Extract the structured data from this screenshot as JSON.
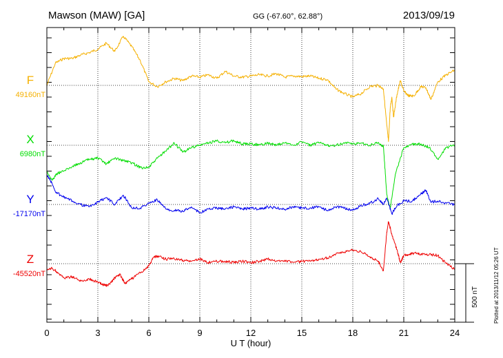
{
  "chart_data": {
    "type": "line",
    "title": "Mawson (MAW)  [GA]",
    "coords": "GG (-67.60°,  62.88°)",
    "date": "2013/09/19",
    "xlabel": "U T (hour)",
    "xlim": [
      0,
      24
    ],
    "x_ticks": [
      0,
      3,
      6,
      9,
      12,
      15,
      18,
      21,
      24
    ],
    "grid": true,
    "scale_bar": "500 nT",
    "footer": "Plotted at 2013/11/12 05:26 UT",
    "series": [
      {
        "name": "F",
        "baseline_label": "49160nT",
        "color": "#f5b000",
        "baseline_nT": 49160,
        "x": [
          0,
          0.5,
          1,
          1.5,
          2,
          2.5,
          3,
          3.5,
          4,
          4.5,
          5,
          5.5,
          6,
          6.5,
          7,
          7.5,
          8,
          8.5,
          9,
          9.5,
          10,
          10.5,
          11,
          11.5,
          12,
          12.5,
          13,
          13.5,
          14,
          14.5,
          15,
          15.5,
          16,
          16.5,
          17,
          17.5,
          18,
          18.5,
          19,
          19.5,
          19.8,
          20,
          20.1,
          20.2,
          20.3,
          20.4,
          20.6,
          20.8,
          21,
          21.3,
          21.6,
          22,
          22.3,
          22.6,
          23,
          23.5,
          24
        ],
        "y": [
          49160,
          49350,
          49390,
          49390,
          49420,
          49440,
          49470,
          49520,
          49450,
          49580,
          49490,
          49370,
          49190,
          49150,
          49190,
          49220,
          49200,
          49240,
          49230,
          49250,
          49220,
          49280,
          49240,
          49230,
          49240,
          49250,
          49240,
          49260,
          49230,
          49240,
          49235,
          49240,
          49220,
          49210,
          49130,
          49090,
          49060,
          49090,
          49150,
          49160,
          49130,
          48820,
          48680,
          48960,
          49060,
          48890,
          49080,
          49200,
          49110,
          49070,
          49070,
          49150,
          49140,
          49040,
          49190,
          49250,
          49290
        ]
      },
      {
        "name": "X",
        "baseline_label": "6980nT",
        "color": "#00dd00",
        "baseline_nT": 6980,
        "x": [
          0,
          0.3,
          0.6,
          1,
          1.5,
          2,
          2.5,
          3,
          3.5,
          4,
          4.5,
          5,
          5.5,
          6,
          6.5,
          7,
          7.5,
          8,
          8.5,
          9,
          9.5,
          10,
          10.5,
          11,
          11.5,
          12,
          12.5,
          13,
          13.5,
          14,
          14.5,
          15,
          15.5,
          16,
          16.5,
          17,
          17.5,
          18,
          18.5,
          19,
          19.5,
          19.8,
          20,
          20.2,
          20.5,
          21,
          21.5,
          22,
          22.5,
          23,
          23.5,
          24
        ],
        "y": [
          6760,
          6680,
          6740,
          6760,
          6800,
          6830,
          6860,
          6870,
          6820,
          6870,
          6850,
          6830,
          6790,
          6790,
          6870,
          6930,
          7000,
          6920,
          6960,
          6980,
          7000,
          7020,
          7000,
          7020,
          6990,
          6990,
          6985,
          7000,
          6980,
          7000,
          6980,
          7010,
          6980,
          7000,
          6980,
          6980,
          7000,
          6990,
          7000,
          6980,
          7000,
          6970,
          6560,
          6440,
          6730,
          6960,
          6990,
          6990,
          6960,
          6860,
          6960,
          6980
        ]
      },
      {
        "name": "Y",
        "baseline_label": "-17170nT",
        "color": "#0000ee",
        "baseline_nT": -17170,
        "x": [
          0,
          0.2,
          0.5,
          1,
          1.5,
          2,
          2.5,
          3,
          3.5,
          4,
          4.5,
          5,
          5.5,
          6,
          6.5,
          7,
          7.5,
          8,
          8.5,
          9,
          9.5,
          10,
          10.5,
          11,
          11.5,
          12,
          12.5,
          13,
          13.5,
          14,
          14.5,
          15,
          15.5,
          16,
          16.5,
          17,
          17.5,
          18,
          18.5,
          19,
          19.5,
          19.8,
          20,
          20.3,
          20.6,
          21,
          21.5,
          22,
          22.3,
          22.6,
          23,
          23.5,
          24
        ],
        "y": [
          -16920,
          -16960,
          -17060,
          -17110,
          -17140,
          -17170,
          -17190,
          -17150,
          -17110,
          -17170,
          -17090,
          -17200,
          -17200,
          -17160,
          -17130,
          -17210,
          -17220,
          -17230,
          -17190,
          -17240,
          -17210,
          -17200,
          -17210,
          -17190,
          -17210,
          -17200,
          -17210,
          -17190,
          -17200,
          -17210,
          -17190,
          -17200,
          -17200,
          -17190,
          -17220,
          -17190,
          -17200,
          -17220,
          -17180,
          -17160,
          -17120,
          -17170,
          -17120,
          -17250,
          -17180,
          -17140,
          -17140,
          -17080,
          -17050,
          -17150,
          -17140,
          -17160,
          -17170
        ]
      },
      {
        "name": "Z",
        "baseline_label": "-45520nT",
        "color": "#ee0000",
        "baseline_nT": -45520,
        "x": [
          0,
          0.3,
          0.6,
          1,
          1.5,
          2,
          2.5,
          3,
          3.3,
          3.6,
          4,
          4.3,
          4.6,
          5,
          5.5,
          6,
          6.3,
          6.6,
          7,
          7.5,
          8,
          8.5,
          9,
          9.5,
          10,
          10.5,
          11,
          11.5,
          12,
          12.5,
          13,
          13.5,
          14,
          14.5,
          15,
          15.5,
          16,
          16.5,
          17,
          17.5,
          18,
          18.5,
          19,
          19.5,
          19.8,
          20,
          20.1,
          20.3,
          20.6,
          20.8,
          21,
          21.3,
          21.6,
          22,
          22.5,
          23,
          23.5,
          24
        ],
        "y": [
          -45580,
          -45560,
          -45590,
          -45640,
          -45630,
          -45670,
          -45650,
          -45680,
          -45700,
          -45710,
          -45640,
          -45610,
          -45690,
          -45650,
          -45600,
          -45540,
          -45460,
          -45460,
          -45480,
          -45480,
          -45490,
          -45500,
          -45480,
          -45510,
          -45500,
          -45500,
          -45510,
          -45500,
          -45510,
          -45500,
          -45480,
          -45500,
          -45490,
          -45510,
          -45500,
          -45500,
          -45480,
          -45470,
          -45440,
          -45420,
          -45400,
          -45420,
          -45460,
          -45500,
          -45580,
          -45250,
          -45160,
          -45270,
          -45400,
          -45510,
          -45450,
          -45440,
          -45430,
          -45440,
          -45440,
          -45450,
          -45520,
          -45570
        ]
      }
    ]
  }
}
